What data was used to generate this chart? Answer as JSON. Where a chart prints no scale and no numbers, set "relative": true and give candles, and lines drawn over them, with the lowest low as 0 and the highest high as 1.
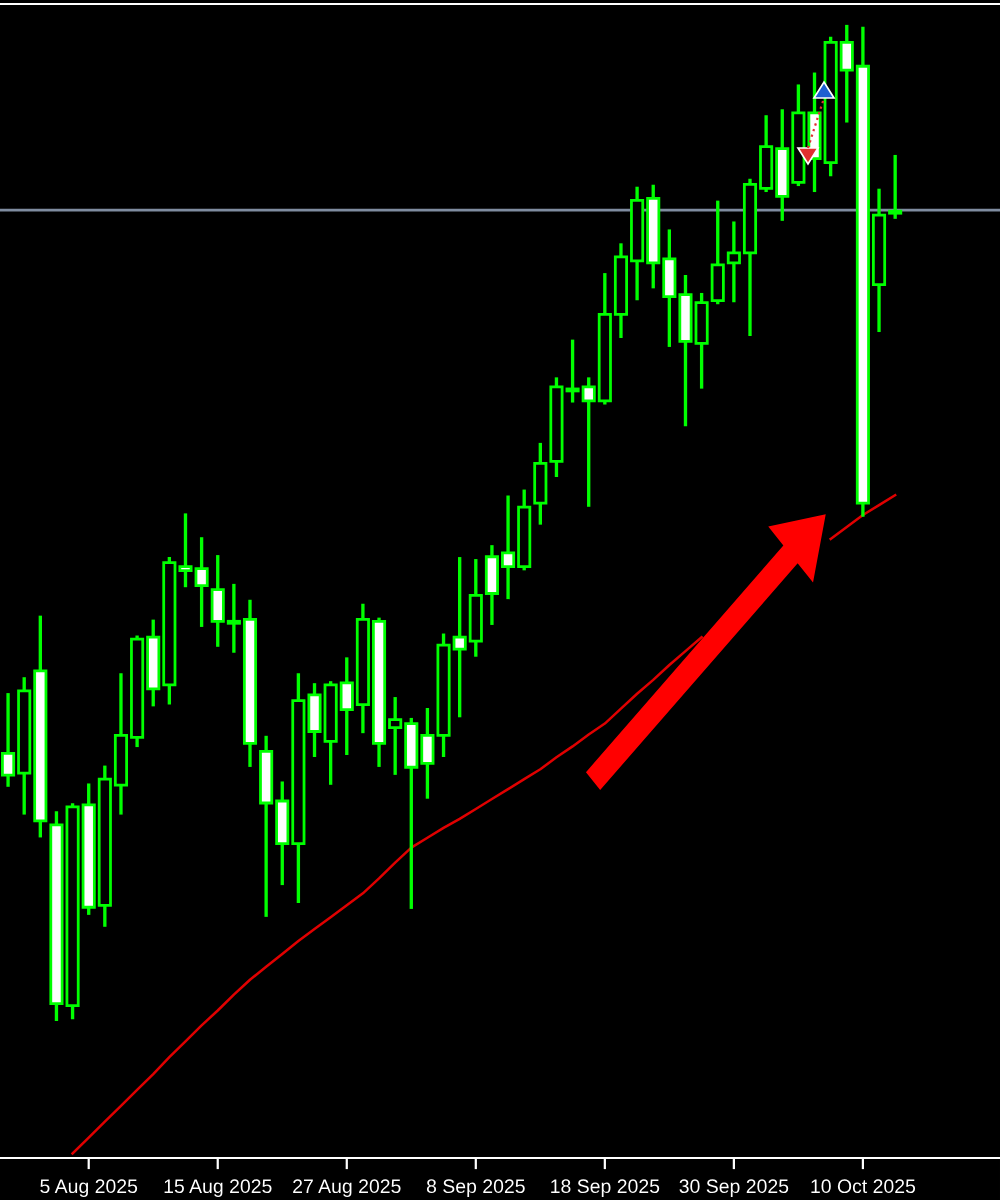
{
  "chart_data": {
    "type": "candlestick",
    "relative": true,
    "tick_labels": "x",
    "categories": [
      null,
      null,
      null,
      null,
      null,
      "5 Aug 2025",
      null,
      null,
      null,
      null,
      null,
      null,
      null,
      "15 Aug 2025",
      null,
      null,
      null,
      null,
      null,
      null,
      null,
      "27 Aug 2025",
      null,
      null,
      null,
      null,
      null,
      null,
      null,
      "8 Sep 2025",
      null,
      null,
      null,
      null,
      null,
      null,
      null,
      "18 Sep 2025",
      null,
      null,
      null,
      null,
      null,
      null,
      null,
      "30 Sep 2025",
      null,
      null,
      null,
      null,
      null,
      null,
      null,
      "10 Oct 2025",
      null,
      null
    ],
    "series": [
      {
        "color": "#00ff00",
        "ohlc": [
          [
            0.268,
            0.327,
            0.236,
            0.246
          ],
          [
            0.248,
            0.343,
            0.208,
            0.331
          ],
          [
            0.351,
            0.405,
            0.185,
            0.2
          ],
          [
            0.196,
            0.208,
            0,
            0.016
          ],
          [
            0.014,
            0.216,
            0.002,
            0.214
          ],
          [
            0.216,
            0.236,
            0.107,
            0.113
          ],
          [
            0.115,
            0.254,
            0.095,
            0.242
          ],
          [
            0.236,
            0.347,
            0.208,
            0.286
          ],
          [
            0.284,
            0.385,
            0.276,
            0.383
          ],
          [
            0.385,
            0.401,
            0.317,
            0.333
          ],
          [
            0.337,
            0.464,
            0.319,
            0.46
          ],
          [
            0.456,
            0.508,
            0.437,
            0.452
          ],
          [
            0.454,
            0.484,
            0.397,
            0.437
          ],
          [
            0.433,
            0.466,
            0.377,
            0.401
          ],
          [
            0.401,
            0.437,
            0.371,
            0.399
          ],
          [
            0.403,
            0.421,
            0.256,
            0.278
          ],
          [
            0.27,
            0.284,
            0.105,
            0.218
          ],
          [
            0.22,
            0.238,
            0.137,
            0.177
          ],
          [
            0.177,
            0.347,
            0.119,
            0.321
          ],
          [
            0.327,
            0.337,
            0.266,
            0.29
          ],
          [
            0.28,
            0.339,
            0.238,
            0.337
          ],
          [
            0.339,
            0.363,
            0.268,
            0.312
          ],
          [
            0.317,
            0.417,
            0.29,
            0.403
          ],
          [
            0.401,
            0.403,
            0.256,
            0.278
          ],
          [
            0.294,
            0.323,
            0.248,
            0.302
          ],
          [
            0.298,
            0.302,
            0.113,
            0.254
          ],
          [
            0.286,
            0.312,
            0.224,
            0.258
          ],
          [
            0.286,
            0.387,
            0.266,
            0.377
          ],
          [
            0.385,
            0.464,
            0.306,
            0.373
          ],
          [
            0.381,
            0.462,
            0.367,
            0.427
          ],
          [
            0.466,
            0.476,
            0.399,
            0.429
          ],
          [
            0.47,
            0.526,
            0.425,
            0.456
          ],
          [
            0.456,
            0.532,
            0.454,
            0.516
          ],
          [
            0.52,
            0.579,
            0.5,
            0.56
          ],
          [
            0.562,
            0.645,
            0.548,
            0.637
          ],
          [
            0.635,
            0.683,
            0.623,
            0.633
          ],
          [
            0.637,
            0.645,
            0.518,
            0.623
          ],
          [
            0.623,
            0.75,
            0.621,
            0.71
          ],
          [
            0.71,
            0.78,
            0.688,
            0.768
          ],
          [
            0.764,
            0.837,
            0.726,
            0.825
          ],
          [
            0.827,
            0.839,
            0.738,
            0.762
          ],
          [
            0.766,
            0.794,
            0.679,
            0.728
          ],
          [
            0.73,
            0.748,
            0.599,
            0.683
          ],
          [
            0.681,
            0.73,
            0.637,
            0.722
          ],
          [
            0.724,
            0.823,
            0.722,
            0.76
          ],
          [
            0.762,
            0.802,
            0.724,
            0.772
          ],
          [
            0.772,
            0.845,
            0.69,
            0.841
          ],
          [
            0.837,
            0.909,
            0.835,
            0.879
          ],
          [
            0.877,
            0.915,
            0.806,
            0.829
          ],
          [
            0.843,
            0.94,
            0.841,
            0.913
          ],
          [
            0.913,
            0.952,
            0.835,
            0.867
          ],
          [
            0.863,
            0.988,
            0.851,
            0.984
          ],
          [
            0.984,
            1,
            0.905,
            0.956
          ],
          [
            0.96,
            0.998,
            0.508,
            0.52
          ],
          [
            0.74,
            0.835,
            0.694,
            0.81
          ],
          [
            0.812,
            0.869,
            0.808,
            0.814
          ]
        ]
      },
      {
        "type": "line",
        "color": "#e00000",
        "values": [
          null,
          null,
          null,
          null,
          -0.135,
          -0.119,
          -0.103,
          -0.087,
          -0.071,
          -0.055,
          -0.038,
          -0.022,
          -0.006,
          0.009,
          0.025,
          0.04,
          0.053,
          0.066,
          0.079,
          0.091,
          0.103,
          0.115,
          0.127,
          0.142,
          0.158,
          0.173,
          0.183,
          0.193,
          0.202,
          0.212,
          0.222,
          0.232,
          0.242,
          0.252,
          0.264,
          0.275,
          0.287,
          0.298,
          0.313,
          0.328,
          0.342,
          0.357,
          0.371,
          0.385,
          null,
          null,
          null,
          null,
          null,
          null,
          null,
          0.484,
          0.496,
          0.508,
          0.518,
          0.528
        ]
      }
    ],
    "ref_lines": [
      {
        "axis": "y",
        "value": 0.815,
        "color": "#7f8ca0",
        "line_style": "solid"
      }
    ]
  }
}
